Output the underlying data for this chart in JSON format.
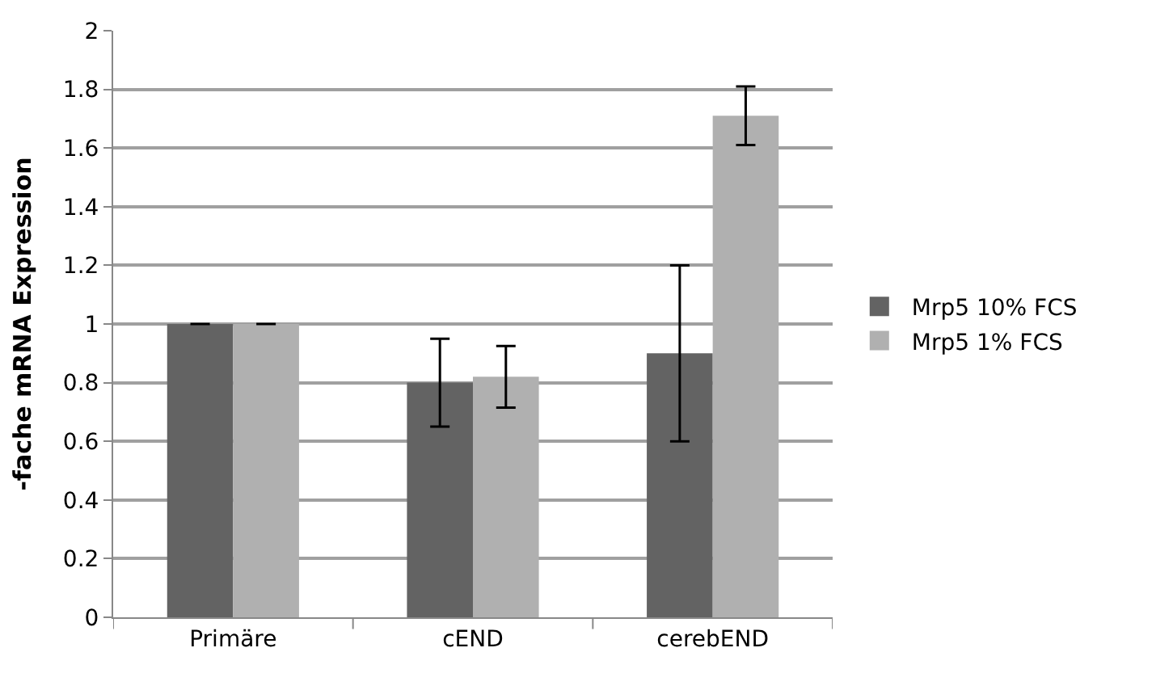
{
  "chart_data": {
    "type": "bar",
    "ylabel": "-fache mRNA Expression",
    "categories": [
      "Primäre",
      "cEND",
      "cerebEND"
    ],
    "series": [
      {
        "name": "Mrp5 10% FCS",
        "color": "#636363",
        "values": [
          1,
          0.8,
          0.9
        ],
        "errors": [
          0,
          0.15,
          0.3
        ]
      },
      {
        "name": "Mrp5 1% FCS",
        "color": "#b0b0b0",
        "values": [
          1,
          0.82,
          1.71
        ],
        "errors": [
          0,
          0.105,
          0.1
        ]
      }
    ],
    "ylim": [
      0,
      2
    ],
    "yticks": [
      0,
      0.2,
      0.4,
      0.6,
      0.8,
      1,
      1.2,
      1.4,
      1.6,
      1.8,
      2
    ],
    "grid": "y",
    "legend": "right"
  }
}
